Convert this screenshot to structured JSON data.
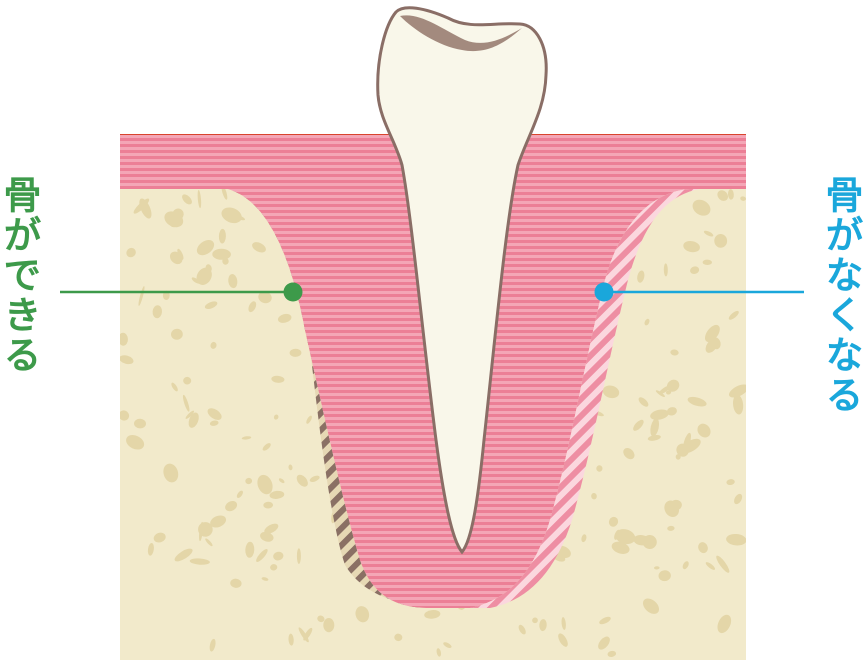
{
  "labels": {
    "left": {
      "text": "骨ができる",
      "color": "#3d9a4a"
    },
    "right": {
      "text": "骨がなくなる",
      "color": "#1aa7db"
    }
  },
  "colors": {
    "bone": "#f2eacb",
    "bone_spot": "#e4d6a8",
    "gum": "#ec7f96",
    "gum_stripe": "#f4a6b6",
    "gum_edge": "#d9442e",
    "tooth": "#f9f7ea",
    "tooth_outline": "#8a6e66",
    "tooth_cusp_shadow": "#a38a7e",
    "new_bone_dark": "#8a7064",
    "new_bone_light": "#e6d8b4",
    "resorb_light": "#fbd7de",
    "resorb_pink": "#ee8ea3"
  }
}
